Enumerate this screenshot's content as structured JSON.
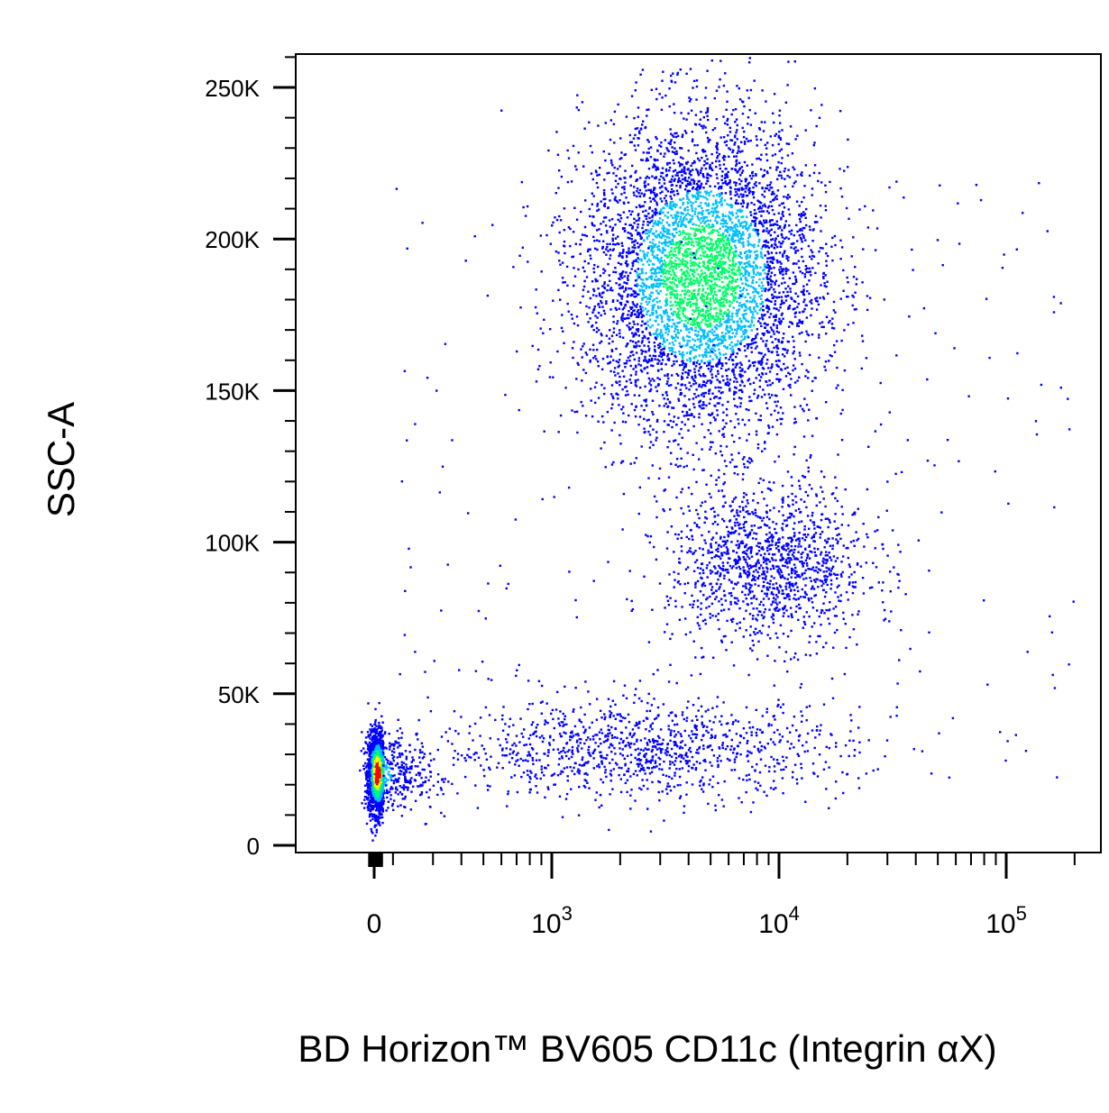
{
  "chart_data": {
    "type": "scatter",
    "title": "",
    "xlabel": "BD Horizon™ BV605 CD11c (Integrin αX)",
    "ylabel": "SSC-A",
    "x_scale": "biexponential",
    "y_scale": "linear",
    "xlim": [
      -150,
      200000
    ],
    "ylim": [
      -2000,
      262144
    ],
    "grid": false,
    "legend": "none",
    "colormap": [
      "#0000ff",
      "#00bfff",
      "#00ff66",
      "#ffff00",
      "#ff0000"
    ],
    "y_ticks": [
      {
        "value": 0,
        "label": "0"
      },
      {
        "value": 50000,
        "label": "50K"
      },
      {
        "value": 100000,
        "label": "100K"
      },
      {
        "value": 150000,
        "label": "150K"
      },
      {
        "value": 200000,
        "label": "200K"
      },
      {
        "value": 250000,
        "label": "250K"
      }
    ],
    "x_ticks": [
      {
        "value": 0,
        "base": "0",
        "exp": ""
      },
      {
        "value": 1000,
        "base": "10",
        "exp": "3"
      },
      {
        "value": 10000,
        "base": "10",
        "exp": "4"
      },
      {
        "value": 100000,
        "base": "10",
        "exp": "5"
      }
    ],
    "populations": [
      {
        "name": "lymphocytes",
        "x_center": 50,
        "y_center": 24000,
        "x_spread_log": 0.1,
        "y_spread": 6500,
        "count": 2400,
        "peak_density": 1.0
      },
      {
        "name": "granulocytes",
        "x_center": 4500,
        "y_center": 188000,
        "x_spread_log": 0.26,
        "y_spread": 26000,
        "count": 5200,
        "peak_density": 0.55
      },
      {
        "name": "monocytes",
        "x_center": 9000,
        "y_center": 93000,
        "x_spread_log": 0.22,
        "y_spread": 13000,
        "count": 1300,
        "peak_density": 0.25
      },
      {
        "name": "debris-tail",
        "x_center": 2500,
        "y_center": 32000,
        "x_spread_log": 0.45,
        "y_spread": 8000,
        "count": 1100,
        "peak_density": 0.2
      }
    ]
  }
}
